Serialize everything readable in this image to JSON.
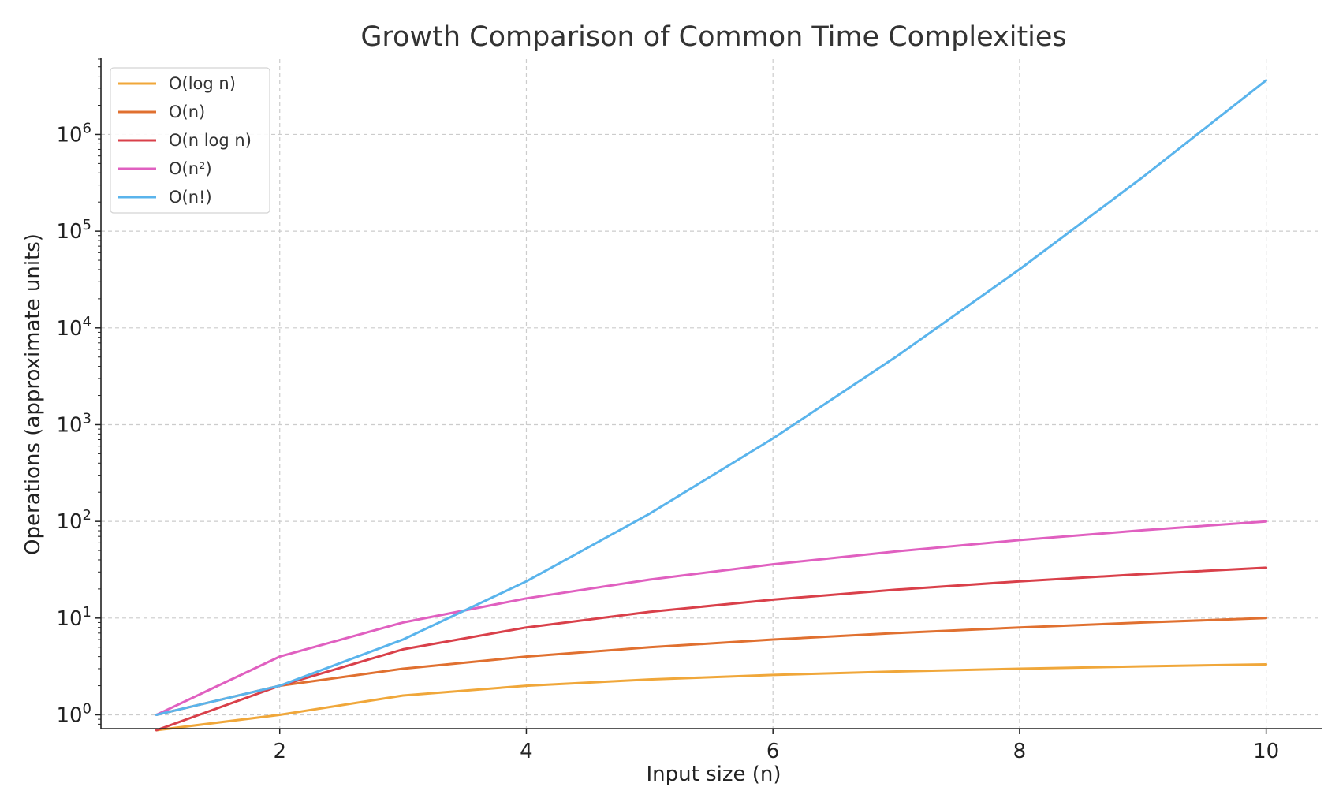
{
  "chart_data": {
    "type": "line",
    "title": "Growth Comparison of Common Time Complexities",
    "xlabel": "Input size (n)",
    "ylabel": "Operations (approximate units)",
    "xlim": [
      0.55,
      10.45
    ],
    "ylim": [
      0.72,
      6000000
    ],
    "y_scale": "log",
    "x_ticks": [
      2,
      4,
      6,
      8,
      10
    ],
    "y_ticks": [
      {
        "value": 1,
        "base": "10",
        "exp": "0"
      },
      {
        "value": 10,
        "base": "10",
        "exp": "1"
      },
      {
        "value": 100,
        "base": "10",
        "exp": "2"
      },
      {
        "value": 1000,
        "base": "10",
        "exp": "3"
      },
      {
        "value": 10000,
        "base": "10",
        "exp": "4"
      },
      {
        "value": 100000,
        "base": "10",
        "exp": "5"
      },
      {
        "value": 1000000,
        "base": "10",
        "exp": "6"
      }
    ],
    "grid": true,
    "legend_position": "top-left",
    "series": [
      {
        "name": "O(log n)",
        "color": "#f0a73a",
        "x": [
          1,
          2,
          3,
          4,
          5,
          6,
          7,
          8,
          9,
          10
        ],
        "y": [
          0,
          1,
          1.585,
          2,
          2.322,
          2.585,
          2.807,
          3,
          3.17,
          3.322
        ]
      },
      {
        "name": "O(n)",
        "color": "#e07030",
        "x": [
          1,
          2,
          3,
          4,
          5,
          6,
          7,
          8,
          9,
          10
        ],
        "y": [
          1,
          2,
          3,
          4,
          5,
          6,
          7,
          8,
          9,
          10
        ]
      },
      {
        "name": "O(n log n)",
        "color": "#d9404a",
        "x": [
          1,
          2,
          3,
          4,
          5,
          6,
          7,
          8,
          9,
          10
        ],
        "y": [
          0,
          2,
          4.755,
          8,
          11.61,
          15.51,
          19.65,
          24,
          28.53,
          33.22
        ]
      },
      {
        "name": "O(n²)",
        "color": "#e060c0",
        "x": [
          1,
          2,
          3,
          4,
          5,
          6,
          7,
          8,
          9,
          10
        ],
        "y": [
          1,
          4,
          9,
          16,
          25,
          36,
          49,
          64,
          81,
          100
        ]
      },
      {
        "name": "O(n!)",
        "color": "#5ab4ec",
        "x": [
          1,
          2,
          3,
          4,
          5,
          6,
          7,
          8,
          9,
          10
        ],
        "y": [
          1,
          2,
          6,
          24,
          120,
          720,
          5040,
          40320,
          362880,
          3628800
        ]
      }
    ]
  }
}
